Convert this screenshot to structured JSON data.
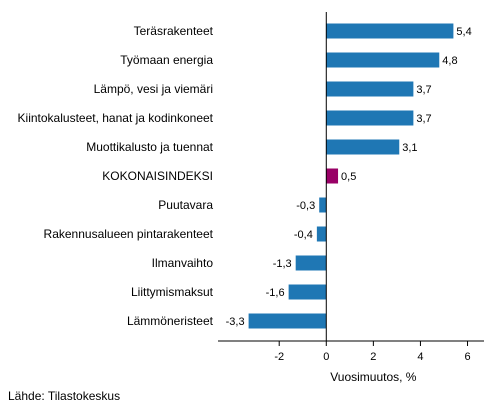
{
  "chart_data": {
    "type": "bar",
    "orientation": "horizontal",
    "categories": [
      "Teräsrakenteet",
      "Työmaan energia",
      "Lämpö, vesi ja viemäri",
      "Kiintokalusteet, hanat ja kodinkoneet",
      "Muottikalusto ja tuennat",
      "KOKONAISINDEKSI",
      "Puutavara",
      "Rakennusalueen pintarakenteet",
      "Ilmanvaihto",
      "Liittymismaksut",
      "Lämmöneristeet"
    ],
    "values": [
      5.4,
      4.8,
      3.7,
      3.7,
      3.1,
      0.5,
      -0.3,
      -0.4,
      -1.3,
      -1.6,
      -3.3
    ],
    "value_labels": [
      "5,4",
      "4,8",
      "3,7",
      "3,7",
      "3,1",
      "0,5",
      "-0,3",
      "-0,4",
      "-1,3",
      "-1,6",
      "-3,3"
    ],
    "highlight_index": 5,
    "xlabel": "Vuosimuutos, %",
    "xlim": [
      -4.6,
      6.7
    ],
    "xticks": [
      -2,
      0,
      2,
      4,
      6
    ],
    "xtick_labels": [
      "-2",
      "0",
      "2",
      "4",
      "6"
    ],
    "grid": false,
    "colors": {
      "bar": "#1f77b4",
      "highlight": "#990066",
      "axis": "#000000"
    }
  },
  "source": "Lähde: Tilastokeskus"
}
